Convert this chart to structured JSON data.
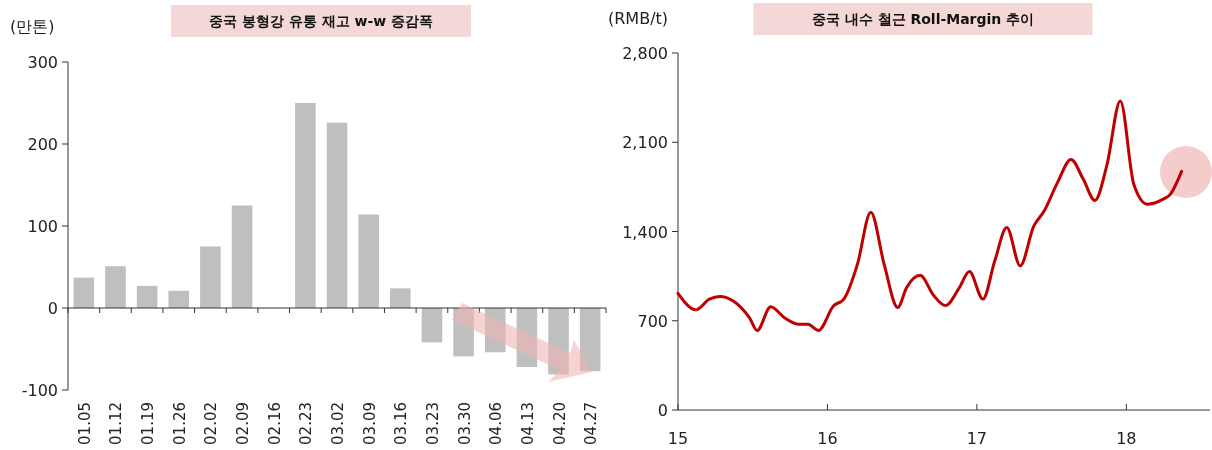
{
  "chart_data": [
    {
      "type": "bar",
      "title": "중국 봉형강 유통 재고 w-w 증감폭",
      "ylabel": "(만톤)",
      "categories": [
        "01.05",
        "01.12",
        "01.19",
        "01.26",
        "02.02",
        "02.09",
        "02.16",
        "02.23",
        "03.02",
        "03.09",
        "03.16",
        "03.23",
        "03.30",
        "04.06",
        "04.13",
        "04.20",
        "04.27"
      ],
      "values": [
        37,
        51,
        27,
        21,
        75,
        125,
        null,
        250,
        226,
        114,
        24,
        -42,
        -59,
        -54,
        -72,
        -81,
        -77
      ],
      "color": "#bfbfbf",
      "ylim": [
        -100,
        300
      ],
      "yticks": [
        -100,
        0,
        100,
        200,
        300
      ]
    },
    {
      "type": "line",
      "title": "중국 내수 철근 Roll-Margin 추이",
      "ylabel": "(RMB/t)",
      "color": "#c00000",
      "line_style": "solid",
      "marker": "none",
      "x": [
        15.0,
        15.12,
        15.21,
        15.28,
        15.37,
        15.48,
        15.53,
        15.62,
        15.71,
        15.81,
        15.87,
        15.94,
        16.04,
        16.11,
        16.2,
        16.29,
        16.38,
        16.47,
        16.53,
        16.62,
        16.71,
        16.79,
        16.88,
        16.95,
        17.04,
        17.12,
        17.2,
        17.29,
        17.38,
        17.45,
        17.54,
        17.63,
        17.71,
        17.79,
        17.87,
        17.96,
        18.05,
        18.14,
        18.25,
        18.29,
        18.37
      ],
      "values": [
        915,
        786,
        870,
        891,
        855,
        720,
        624,
        810,
        726,
        672,
        672,
        624,
        816,
        870,
        1140,
        1551,
        1140,
        804,
        960,
        1056,
        900,
        819,
        954,
        1086,
        870,
        1170,
        1431,
        1131,
        1440,
        1560,
        1785,
        1965,
        1815,
        1644,
        1920,
        2424,
        1770,
        1614,
        1656,
        1686,
        1872
      ],
      "xlim": [
        15,
        18.56
      ],
      "xticks": [
        15,
        16,
        17,
        18
      ],
      "ylim": [
        0,
        2800
      ],
      "yticks": [
        0,
        700,
        {
          "value": 1400,
          "label": "1,400"
        },
        {
          "value": 2100,
          "label": "2,100"
        },
        {
          "value": 2800,
          "label": "2,800"
        }
      ]
    }
  ]
}
